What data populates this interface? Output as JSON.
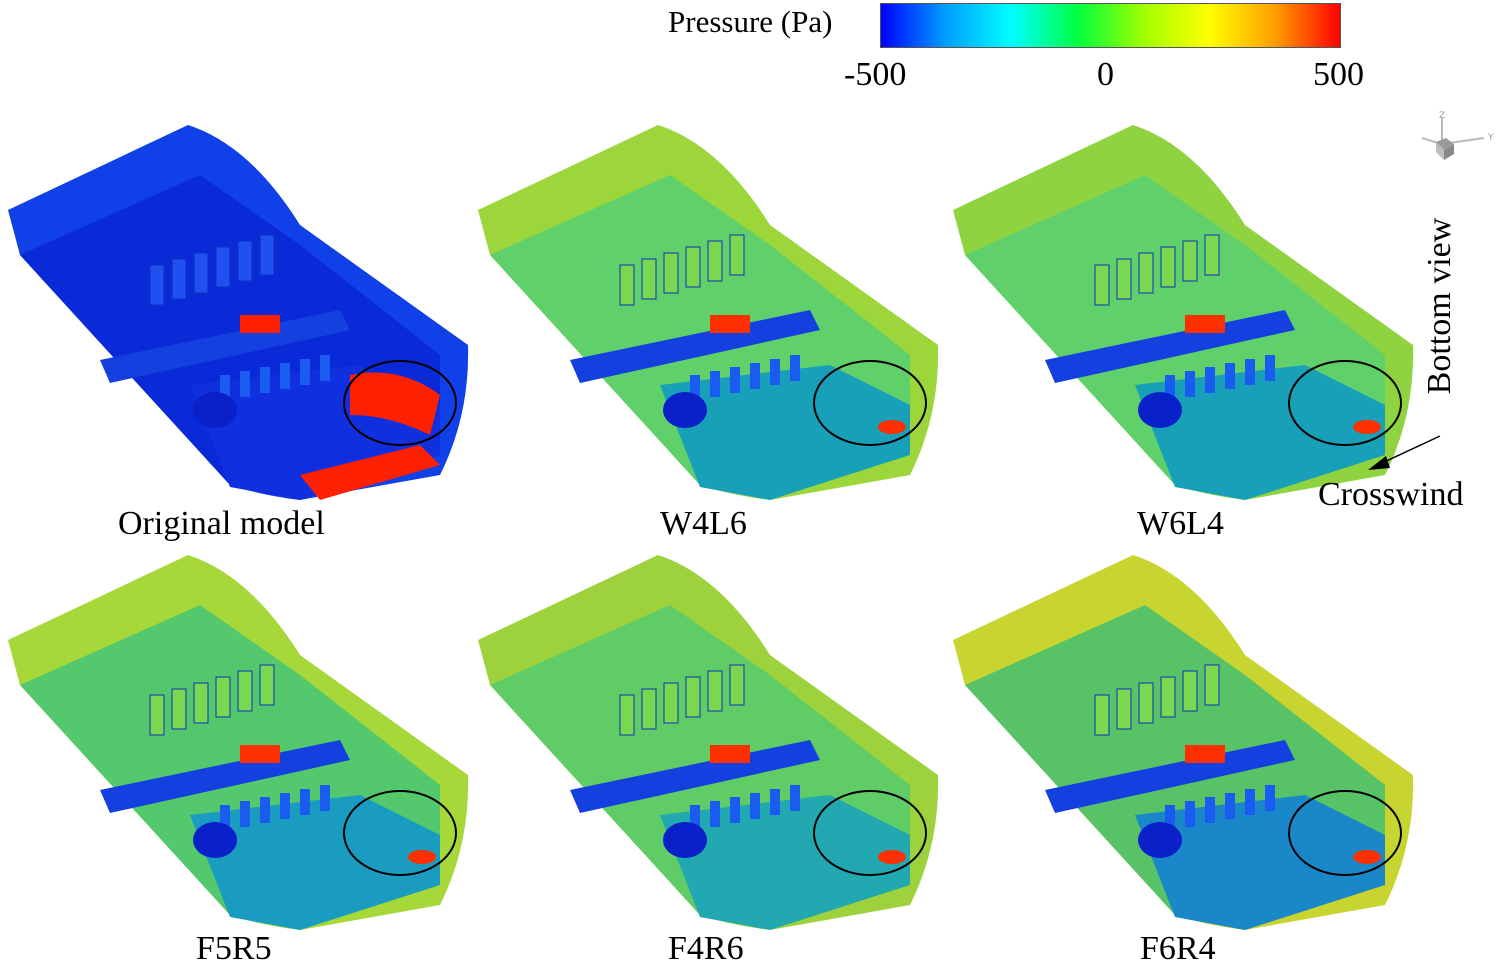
{
  "colorbar": {
    "title": "Pressure (Pa)",
    "ticks": [
      "-500",
      "0",
      "500"
    ],
    "colormap": [
      "#0000ff",
      "#00a0ff",
      "#00ffff",
      "#00ff40",
      "#a0ff00",
      "#ffff00",
      "#ffa000",
      "#ff0000"
    ]
  },
  "panels": [
    {
      "caption": "Original model",
      "base": "#1030e0",
      "top": "#0a2ad8",
      "side": "#1040e8",
      "hot": "#ff2000"
    },
    {
      "caption": "W4L6",
      "base": "#18a0b8",
      "top": "#5fd06a",
      "side": "#9cd63a",
      "hot": "#ff3000"
    },
    {
      "caption": "W6L4",
      "base": "#18a0b8",
      "top": "#5fd06a",
      "side": "#8fd440",
      "hot": "#ff3000"
    },
    {
      "caption": "F5R5",
      "base": "#1a9cc0",
      "top": "#54c86c",
      "side": "#a6d83a",
      "hot": "#ff3000"
    },
    {
      "caption": "F4R6",
      "base": "#22a8b0",
      "top": "#60cc66",
      "side": "#9ed23c",
      "hot": "#ff3000"
    },
    {
      "caption": "F6R4",
      "base": "#1a88c8",
      "top": "#58c266",
      "side": "#c8d430",
      "hot": "#ff3000"
    }
  ],
  "orientation": {
    "view_label": "Bottom view",
    "wind_label": "Crosswind",
    "axis_labels": [
      "Z",
      "Y"
    ]
  }
}
